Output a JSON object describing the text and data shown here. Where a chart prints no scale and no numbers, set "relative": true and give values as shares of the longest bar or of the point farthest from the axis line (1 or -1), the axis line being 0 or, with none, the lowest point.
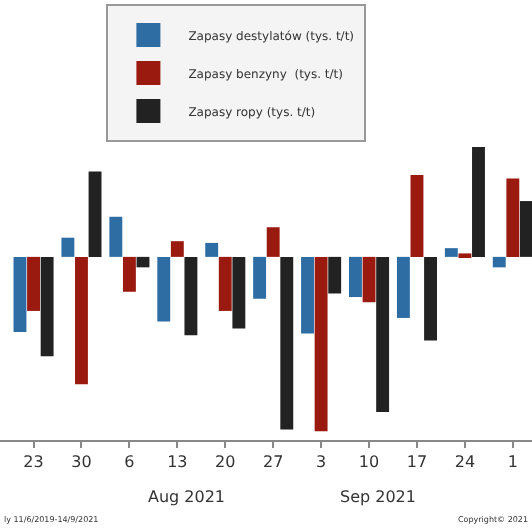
{
  "chart_data": {
    "type": "bar",
    "relative": true,
    "categories": [
      "23",
      "30",
      "6",
      "13",
      "20",
      "27",
      "3",
      "10",
      "17",
      "24",
      "1"
    ],
    "series": [
      {
        "name": "Zapasy destylatów (tys. t/t)",
        "color": "#2e6da4",
        "values": [
          -0.43,
          0.11,
          0.23,
          -0.37,
          0.08,
          -0.24,
          -0.44,
          -0.23,
          -0.35,
          0.05,
          -0.06
        ]
      },
      {
        "name": "Zapasy benzyny  (tys. t/t)",
        "color": "#9b1a10",
        "values": [
          -0.31,
          -0.73,
          -0.2,
          0.09,
          -0.31,
          0.17,
          -1.0,
          -0.26,
          0.47,
          0.02,
          0.45
        ]
      },
      {
        "name": "Zapasy ropy (tys. t/t)",
        "color": "#222222",
        "values": [
          -0.57,
          0.49,
          -0.06,
          -0.45,
          -0.41,
          -0.99,
          -0.21,
          -0.89,
          -0.48,
          0.63,
          0.32
        ]
      }
    ],
    "annotations": [
      "Aug 2021",
      "Sep 2021",
      "ly 11/6/2019-14/9/2021",
      "Copyright© 2021"
    ],
    "legend": "top"
  }
}
